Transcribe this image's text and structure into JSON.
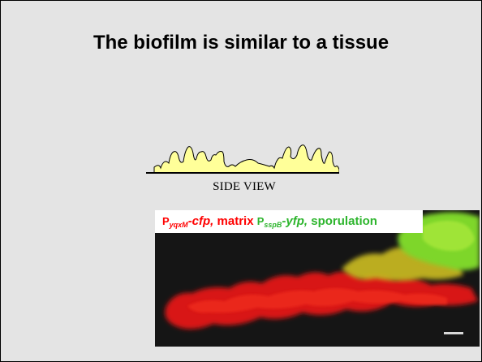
{
  "slide": {
    "title": "The biofilm is similar to a tissue",
    "diagram": {
      "label": "SIDE VIEW"
    },
    "micrograph": {
      "legend": {
        "matrix": {
          "promoter_prefix": "P",
          "promoter_sub": "yqxM",
          "reporter": "-cfp,",
          "label": "matrix"
        },
        "sporulation": {
          "promoter_prefix": "P",
          "promoter_sub": "sspB",
          "reporter": "-yfp,",
          "label": "sporulation"
        }
      }
    },
    "colors": {
      "background": "#e4e4e4",
      "biofilm_fill": "#ffff99",
      "matrix": "#ff0000",
      "sporulation": "#2db52d"
    }
  }
}
